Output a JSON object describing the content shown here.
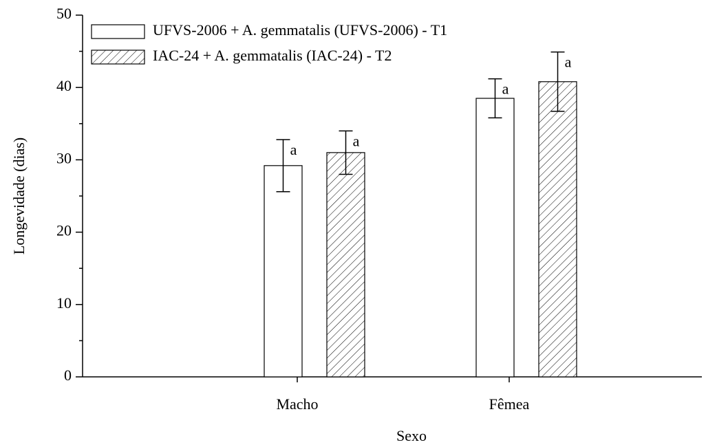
{
  "chart_data": {
    "type": "bar",
    "x_label": "Sexo",
    "y_label": "Longevidade (dias)",
    "categories": [
      "Macho",
      "Fêmea"
    ],
    "series": [
      {
        "name": "UFVS-2006 + A. gemmatalis (UFVS-2006) - T1",
        "color": "#ffffff",
        "pattern": "none",
        "values": [
          29.2,
          38.5
        ],
        "errors": [
          3.6,
          2.7
        ],
        "letters": [
          "a",
          "a"
        ]
      },
      {
        "name": "IAC-24 + A. gemmatalis (IAC-24) - T2",
        "color": "#ffffff",
        "pattern": "hatch",
        "values": [
          31.0,
          40.8
        ],
        "errors": [
          3.0,
          4.1
        ],
        "letters": [
          "a",
          "a"
        ]
      }
    ],
    "ylim": [
      0,
      50
    ],
    "yticks": [
      0,
      10,
      20,
      30,
      40,
      50
    ],
    "yminorticks": [
      5,
      15,
      25,
      35,
      45
    ],
    "grid": false,
    "legend": "upper left"
  }
}
